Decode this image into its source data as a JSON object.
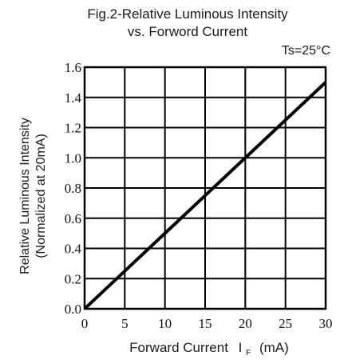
{
  "chart_data": {
    "type": "line",
    "title": "Fig.2-Relative Luminous Intensity",
    "subtitle": "vs. Forword Current",
    "condition": "Ts=25°C",
    "ylabel": "Relative Luminous Intensity",
    "ylabel2": "(Normalized at 20mA)",
    "xlabel": "Forward Current",
    "xlabel_symbol": "I",
    "xlabel_subscript": "F",
    "xlabel_unit": "(mA)",
    "xlim": [
      0,
      30
    ],
    "ylim": [
      0,
      1.6
    ],
    "x_ticks": [
      0,
      5,
      10,
      15,
      20,
      25,
      30
    ],
    "x_tick_labels": [
      "0",
      "5",
      "10",
      "15",
      "20",
      "25",
      "30"
    ],
    "y_ticks": [
      0,
      0.2,
      0.4,
      0.6,
      0.8,
      1.0,
      1.2,
      1.4,
      1.6
    ],
    "y_tick_labels": [
      "0.0",
      "0.2",
      "0.4",
      "0.6",
      "0.8",
      "1.0",
      "1.2",
      "1.4",
      "1.6"
    ],
    "grid": true,
    "series": [
      {
        "x": [
          0,
          5,
          10,
          15,
          20,
          25,
          30
        ],
        "y": [
          0,
          0.25,
          0.5,
          0.75,
          1.0,
          1.25,
          1.5
        ]
      }
    ]
  }
}
